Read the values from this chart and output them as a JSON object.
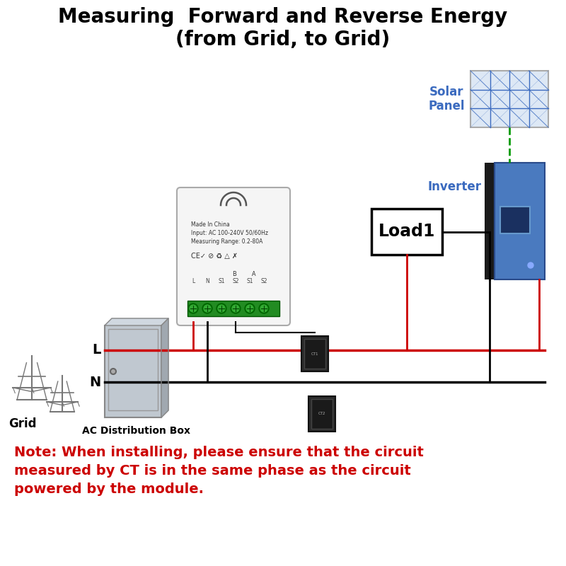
{
  "title_line1": "Measuring  Forward and Reverse Energy",
  "title_line2": "(from Grid, to Grid)",
  "title_fontsize": 20,
  "title_color": "#000000",
  "note_text_line1": "Note: When installing, please ensure that the circuit",
  "note_text_line2": "measured by CT is in the same phase as the circuit",
  "note_text_line3": "powered by the module.",
  "note_color": "#cc0000",
  "note_fontsize": 14,
  "bg_color": "#ffffff",
  "label_solar": "Solar\nPanel",
  "label_inverter": "Inverter",
  "label_load": "Load1",
  "label_grid": "Grid",
  "label_ac_box": "AC Distribution Box",
  "label_L": "L",
  "label_N": "N",
  "solar_panel_color": "#3a6abf",
  "inverter_label_color": "#3a6abf",
  "inverter_body_color": "#4a7abf",
  "load_box_color": "#000000",
  "wire_black": "#000000",
  "wire_red": "#cc0000",
  "wire_green": "#009900",
  "tower_color": "#777777",
  "meter_bg": "#f8f8f8",
  "ct_color": "#222222",
  "ac_box_fill": "#b0b8c0",
  "ac_box_edge": "#777777"
}
